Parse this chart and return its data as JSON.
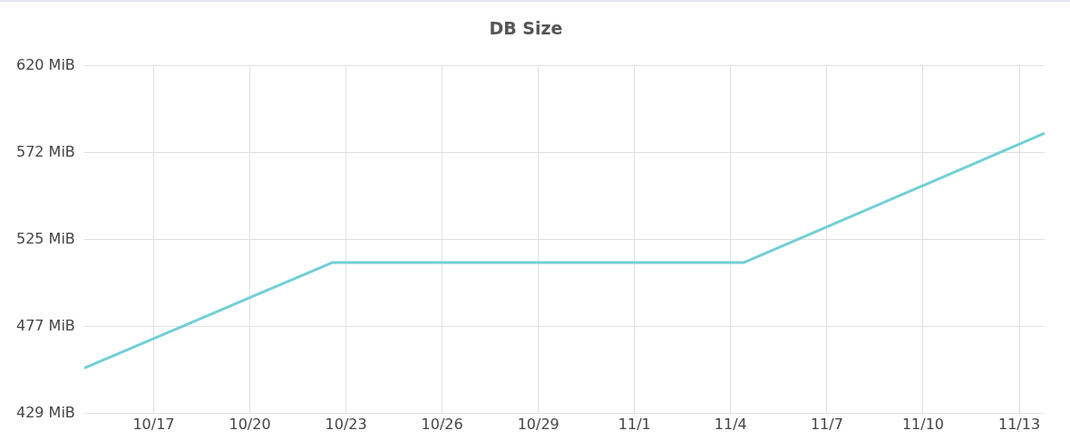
{
  "chart_data": {
    "type": "line",
    "title": "DB Size",
    "x": [
      "--10-14T20:00",
      "--10-22T14:00",
      "--11-04T10:00",
      "--11-13T19:00"
    ],
    "series": [
      {
        "color": "#72cfd4",
        "values": [
          454,
          512,
          512,
          583
        ]
      }
    ],
    "xlim": [
      "--10-14T20:00",
      "--11-13T19:00"
    ],
    "xticks": [
      {
        "value": "--10-17",
        "label": "10/17"
      },
      {
        "value": "--10-20",
        "label": "10/20"
      },
      {
        "value": "--10-23",
        "label": "10/23"
      },
      {
        "value": "--10-26",
        "label": "10/26"
      },
      {
        "value": "--10-29",
        "label": "10/29"
      },
      {
        "value": "--11-01",
        "label": "11/1"
      },
      {
        "value": "--11-04",
        "label": "11/4"
      },
      {
        "value": "--11-07",
        "label": "11/7"
      },
      {
        "value": "--11-10",
        "label": "11/10"
      },
      {
        "value": "--11-13",
        "label": "11/13"
      }
    ],
    "ylim": [
      429,
      620
    ],
    "yticks": [
      {
        "value": 429,
        "label": "429 MiB"
      },
      {
        "value": 476.75,
        "label": "477 MiB"
      },
      {
        "value": 524.5,
        "label": "525 MiB"
      },
      {
        "value": 572.25,
        "label": "572 MiB"
      },
      {
        "value": 620,
        "label": "620 MiB"
      }
    ],
    "grid": true,
    "legend": false,
    "marker": "none",
    "line_style": "solid"
  }
}
